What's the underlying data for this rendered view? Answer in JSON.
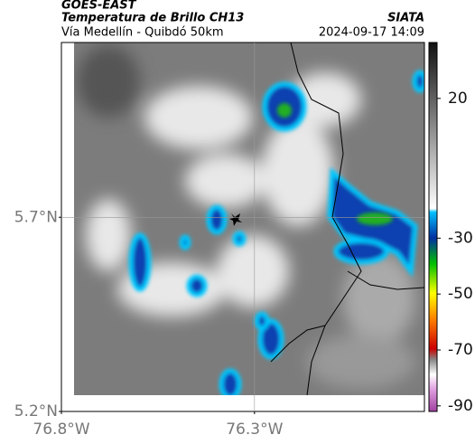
{
  "header": {
    "title": "GOES-EAST",
    "subtitle": "Temperatura de Brillo CH13",
    "source": "SIATA",
    "route": "Vía Medellín - Quibdó 50km",
    "timestamp": "2024-09-17 14:09"
  },
  "map": {
    "lat_lim": [
      5.2,
      6.15
    ],
    "lon_lim": [
      -76.8,
      -75.86
    ],
    "lat_ticks": [
      {
        "value": 5.7,
        "label": "5.7°N"
      },
      {
        "value": 5.2,
        "label": "5.2°N"
      }
    ],
    "lon_ticks": [
      {
        "value": -76.8,
        "label": "76.8°W"
      },
      {
        "value": -76.3,
        "label": "76.3°W"
      }
    ],
    "grid": true
  },
  "colorbar": {
    "lim": [
      -92,
      40
    ],
    "ticks": [
      20,
      -30,
      -50,
      -70,
      -90
    ]
  }
}
